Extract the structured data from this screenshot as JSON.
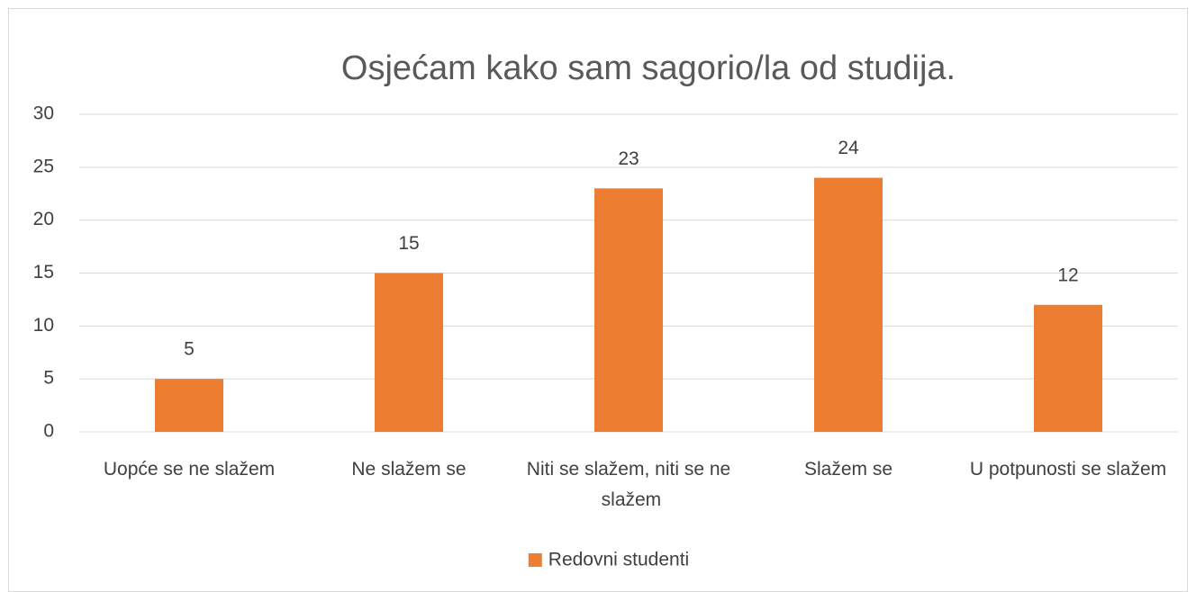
{
  "chart_data": {
    "type": "bar",
    "title": "Osjećam kako sam sagorio/la od studija.",
    "categories": [
      "Uopće se ne slažem",
      "Ne slažem se",
      "Niti se slažem, niti se ne slažem",
      "Slažem se",
      "U potpunosti se slažem"
    ],
    "series": [
      {
        "name": "Redovni studenti",
        "color": "#ed7d31",
        "values": [
          5,
          15,
          23,
          24,
          12
        ]
      }
    ],
    "ylim": [
      0,
      30
    ],
    "yticks": [
      0,
      5,
      10,
      15,
      20,
      25,
      30
    ],
    "grid": true,
    "legend": "bottom"
  }
}
